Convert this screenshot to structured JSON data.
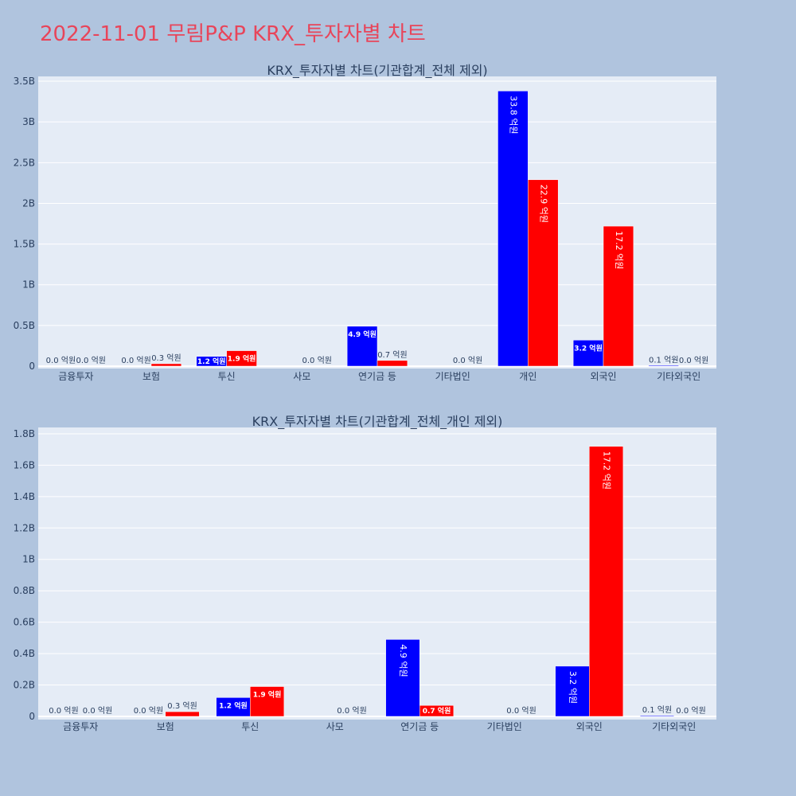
{
  "page": {
    "title": "2022-11-01 무림P&P KRX_투자자별 차트"
  },
  "colors": {
    "background": "#b0c4de",
    "plot_bg": "#e5ecf6",
    "title": "#e8455a",
    "sell_series": "#0000ff",
    "buy_series": "#ff0000"
  },
  "chart_data": [
    {
      "type": "bar",
      "title": "KRX_투자자별 차트(기관합계_전체 제외)",
      "categories": [
        "금융투자",
        "보험",
        "투신",
        "사모",
        "연기금 등",
        "기타법인",
        "개인",
        "외국인",
        "기타외국인"
      ],
      "series": [
        {
          "color": "#0000ff",
          "values": [
            0,
            0,
            120000000,
            null,
            490000000,
            null,
            3380000000,
            320000000,
            5000000
          ],
          "labels": [
            "0.0 억원",
            "0.0 억원",
            "1.2 억원",
            "",
            "4.9 억원",
            "",
            "33.8 억원",
            "3.2 억원",
            "0.1 억원"
          ]
        },
        {
          "color": "#ff0000",
          "values": [
            0,
            30000000,
            190000000,
            0,
            70000000,
            0,
            2290000000,
            1720000000,
            0
          ],
          "labels": [
            "0.0 억원",
            "0.3 억원",
            "1.9 억원",
            "0.0 억원",
            "0.7 억원",
            "0.0 억원",
            "22.9 억원",
            "17.2 억원",
            "0.0 억원"
          ]
        }
      ],
      "ylim": [
        0,
        3520000000
      ],
      "yticks": [
        0,
        500000000,
        1000000000,
        1500000000,
        2000000000,
        2500000000,
        3000000000,
        3500000000
      ],
      "ytick_labels": [
        "0",
        "0.5B",
        "1B",
        "1.5B",
        "2B",
        "2.5B",
        "3B",
        "3.5B"
      ],
      "grid": true
    },
    {
      "type": "bar",
      "title": "KRX_투자자별 차트(기관합계_전체_개인 제외)",
      "categories": [
        "금융투자",
        "보험",
        "투신",
        "사모",
        "연기금 등",
        "기타법인",
        "외국인",
        "기타외국인"
      ],
      "series": [
        {
          "color": "#0000ff",
          "values": [
            0,
            0,
            120000000,
            null,
            490000000,
            null,
            320000000,
            5000000
          ],
          "labels": [
            "0.0 억원",
            "0.0 억원",
            "1.2 억원",
            "",
            "4.9 억원",
            "",
            "3.2 억원",
            "0.1 억원"
          ]
        },
        {
          "color": "#ff0000",
          "values": [
            0,
            30000000,
            190000000,
            0,
            70000000,
            0,
            1720000000,
            0
          ],
          "labels": [
            "0.0 억원",
            "0.3 억원",
            "1.9 억원",
            "0.0 억원",
            "0.7 억원",
            "0.0 억원",
            "17.2 억원",
            "0.0 억원"
          ]
        }
      ],
      "ylim": [
        0,
        1820000000
      ],
      "yticks": [
        0,
        200000000,
        400000000,
        600000000,
        800000000,
        1000000000,
        1200000000,
        1400000000,
        1600000000,
        1800000000
      ],
      "ytick_labels": [
        "0",
        "0.2B",
        "0.4B",
        "0.6B",
        "0.8B",
        "1B",
        "1.2B",
        "1.4B",
        "1.6B",
        "1.8B"
      ],
      "grid": true
    }
  ]
}
